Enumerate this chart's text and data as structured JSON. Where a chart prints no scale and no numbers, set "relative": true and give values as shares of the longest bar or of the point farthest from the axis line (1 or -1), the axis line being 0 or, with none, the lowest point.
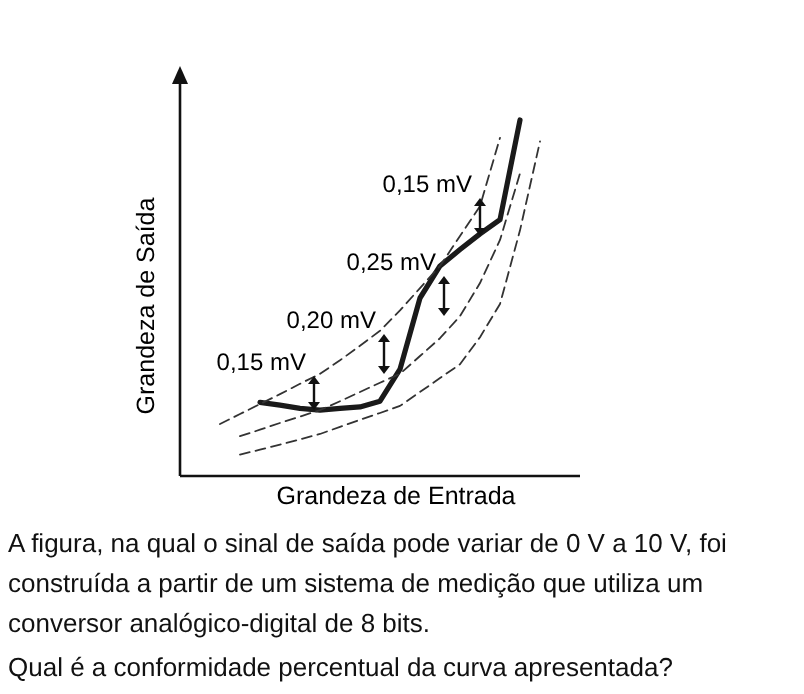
{
  "chart_data": {
    "type": "line",
    "relative": true,
    "xlabel": "Grandeza de Entrada",
    "ylabel": "Grandeza de Saída",
    "categories": [
      null,
      null,
      null,
      null,
      null,
      null,
      null,
      null,
      null,
      null,
      null,
      null,
      null,
      null,
      null,
      null,
      null
    ],
    "series": [
      {
        "color": "#1a1a1a",
        "line_style": "solid",
        "values": [
          null,
          null,
          0.207,
          0.199,
          0.19,
          0.185,
          0.19,
          0.194,
          0.21,
          0.3,
          0.5,
          0.59,
          0.636,
          0.68,
          0.72,
          1.0,
          null
        ]
      },
      {
        "color": "#333333",
        "line_style": "dashed",
        "values": [
          0.146,
          0.174,
          0.202,
          0.23,
          0.259,
          0.287,
          0.325,
          0.366,
          0.408,
          0.465,
          0.528,
          0.59,
          0.674,
          0.758,
          0.95,
          null,
          null
        ]
      },
      {
        "color": "#333333",
        "line_style": "dashed",
        "values": [
          null,
          0.112,
          0.13,
          0.149,
          0.167,
          0.185,
          0.21,
          0.236,
          0.262,
          0.287,
          0.337,
          0.387,
          0.449,
          0.542,
          0.663,
          0.85,
          null
        ]
      },
      {
        "color": "#333333",
        "line_style": "dashed",
        "values": [
          null,
          0.06,
          0.074,
          0.088,
          0.103,
          0.118,
          0.138,
          0.158,
          0.177,
          0.197,
          0.236,
          0.275,
          0.314,
          0.39,
          0.483,
          0.69,
          0.94
        ]
      }
    ],
    "annotations": [
      "0,15 mV",
      "0,20 mV",
      "0,25 mV",
      "0,15 mV",
      "A figura, na qual o sinal de saída pode variar de 0 V a 10 V, foi construída a partir de um sistema de medição que utiliza um conversor analógico-digital de 8 bits.",
      "Qual é a conformidade percentual da curva apresentada?"
    ]
  }
}
